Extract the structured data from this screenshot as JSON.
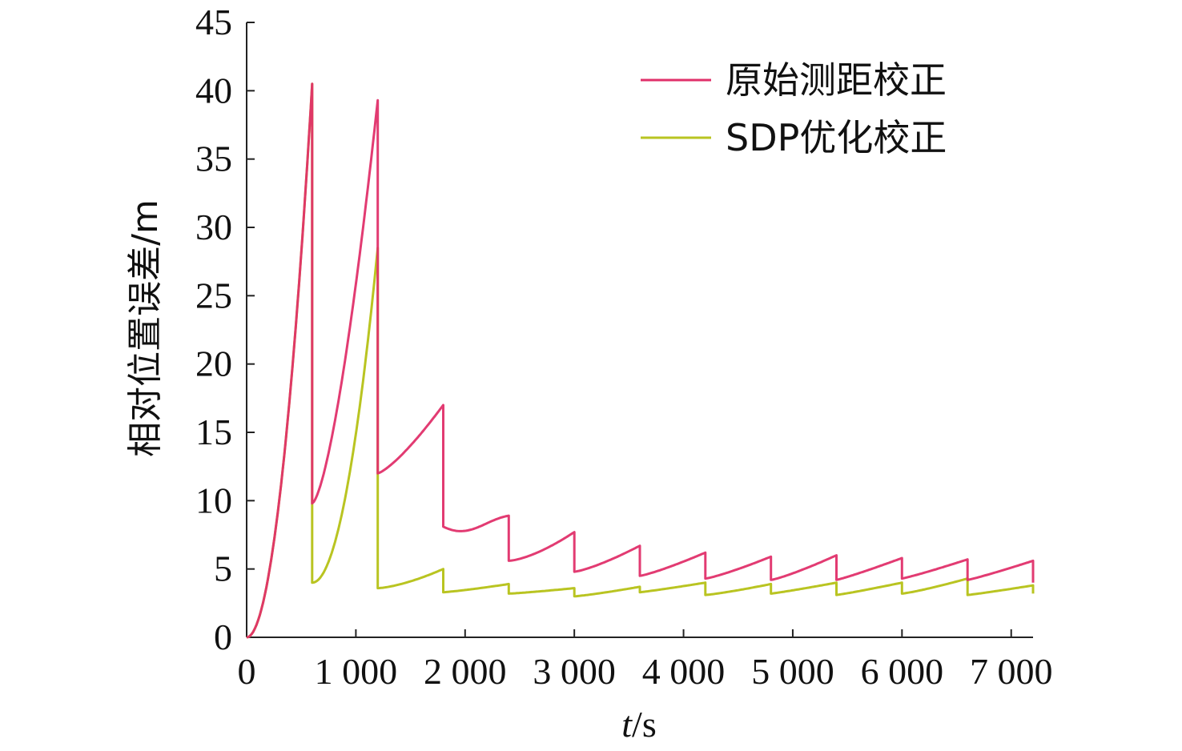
{
  "chart_data": {
    "type": "line",
    "title": "",
    "xlabel": "t/s",
    "xlabel_italic_part": "t",
    "xlabel_rest": "/s",
    "ylabel": "相对位置误差/m",
    "xlim": [
      0,
      7200
    ],
    "ylim": [
      0,
      45
    ],
    "x_ticks": [
      0,
      1000,
      2000,
      3000,
      4000,
      5000,
      6000,
      7000
    ],
    "x_tick_labels": [
      "0",
      "1 000",
      "2 000",
      "3 000",
      "4 000",
      "5 000",
      "6 000",
      "7 000"
    ],
    "y_ticks": [
      0,
      5,
      10,
      15,
      20,
      25,
      30,
      35,
      40,
      45
    ],
    "y_tick_labels": [
      "0",
      "5",
      "10",
      "15",
      "20",
      "25",
      "30",
      "35",
      "40",
      "45"
    ],
    "grid": false,
    "legend_position": "top-right",
    "series": [
      {
        "name": "原始测距校正",
        "color": "#e0306a",
        "segments": [
          {
            "x0": 0,
            "y0": 0,
            "x1": 600,
            "y1": 40.5,
            "exp": 2.0
          },
          {
            "x0": 600,
            "y0": 9.8,
            "x1": 1200,
            "y1": 39.3,
            "exp": 1.5
          },
          {
            "x0": 1200,
            "y0": 12.0,
            "x1": 1800,
            "y1": 17.0,
            "exp": 1.3
          },
          {
            "x0": 1800,
            "y0": 8.1,
            "x1": 2400,
            "y1": 8.9,
            "exp": 1.0,
            "dip": 1.0
          },
          {
            "x0": 2400,
            "y0": 5.6,
            "x1": 3000,
            "y1": 7.7,
            "exp": 1.5
          },
          {
            "x0": 3000,
            "y0": 4.8,
            "x1": 3600,
            "y1": 6.7,
            "exp": 1.3
          },
          {
            "x0": 3600,
            "y0": 4.5,
            "x1": 4200,
            "y1": 6.2,
            "exp": 1.2
          },
          {
            "x0": 4200,
            "y0": 4.3,
            "x1": 4800,
            "y1": 5.9,
            "exp": 1.2
          },
          {
            "x0": 4800,
            "y0": 4.2,
            "x1": 5400,
            "y1": 6.0,
            "exp": 1.2
          },
          {
            "x0": 5400,
            "y0": 4.2,
            "x1": 6000,
            "y1": 5.8,
            "exp": 1.1
          },
          {
            "x0": 6000,
            "y0": 4.3,
            "x1": 6600,
            "y1": 5.7,
            "exp": 1.1
          },
          {
            "x0": 6600,
            "y0": 4.2,
            "x1": 7200,
            "y1": 5.6,
            "exp": 1.1,
            "tail_drop": 4.0
          }
        ]
      },
      {
        "name": "SDP优化校正",
        "color": "#b9c421",
        "segments": [
          {
            "x0": 0,
            "y0": 0,
            "x1": 600,
            "y1": 40.5,
            "exp": 2.0
          },
          {
            "x0": 600,
            "y0": 4.0,
            "x1": 1200,
            "y1": 28.5,
            "exp": 2.0
          },
          {
            "x0": 1200,
            "y0": 3.6,
            "x1": 1800,
            "y1": 5.0,
            "exp": 1.5
          },
          {
            "x0": 1800,
            "y0": 3.3,
            "x1": 2400,
            "y1": 3.9,
            "exp": 1.2
          },
          {
            "x0": 2400,
            "y0": 3.2,
            "x1": 3000,
            "y1": 3.6,
            "exp": 1.2
          },
          {
            "x0": 3000,
            "y0": 3.0,
            "x1": 3600,
            "y1": 3.7,
            "exp": 1.2
          },
          {
            "x0": 3600,
            "y0": 3.3,
            "x1": 4200,
            "y1": 4.0,
            "exp": 1.1
          },
          {
            "x0": 4200,
            "y0": 3.1,
            "x1": 4800,
            "y1": 3.9,
            "exp": 1.2
          },
          {
            "x0": 4800,
            "y0": 3.2,
            "x1": 5400,
            "y1": 4.0,
            "exp": 1.1
          },
          {
            "x0": 5400,
            "y0": 3.1,
            "x1": 6000,
            "y1": 4.0,
            "exp": 1.1
          },
          {
            "x0": 6000,
            "y0": 3.2,
            "x1": 6600,
            "y1": 4.3,
            "exp": 1.2
          },
          {
            "x0": 6600,
            "y0": 3.1,
            "x1": 7200,
            "y1": 3.8,
            "exp": 1.1,
            "tail_drop": 3.2
          }
        ]
      }
    ]
  }
}
